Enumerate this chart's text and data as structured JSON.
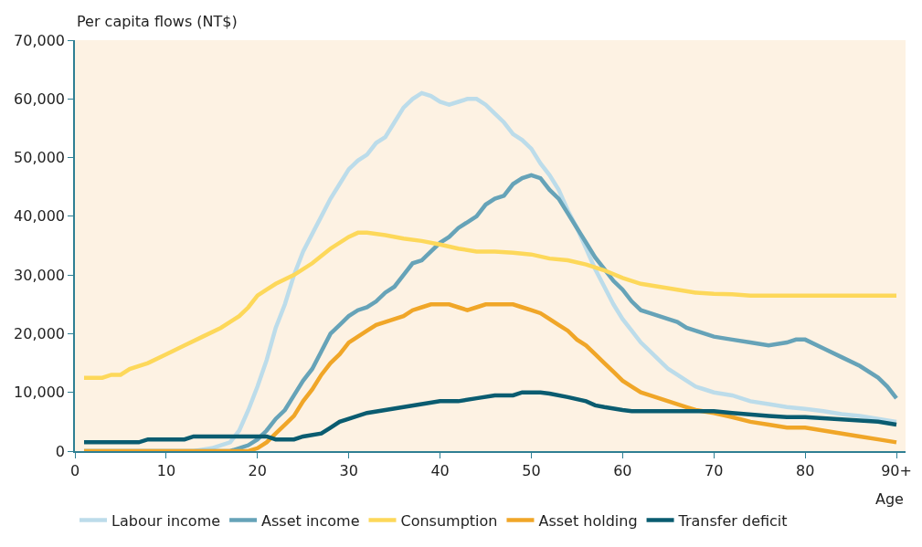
{
  "chart_data": {
    "type": "line",
    "ylabel": "Per capita flows (NT$)",
    "xlabel": "Age",
    "xlim": [
      0,
      91
    ],
    "ylim": [
      0,
      70000
    ],
    "xticks": [
      0,
      10,
      20,
      30,
      40,
      50,
      60,
      70,
      80,
      {
        "value": 90,
        "label": "90+"
      }
    ],
    "yticks": [
      {
        "value": 0,
        "label": "0"
      },
      {
        "value": 10000,
        "label": "10,000"
      },
      {
        "value": 20000,
        "label": "20,000"
      },
      {
        "value": 30000,
        "label": "30,000"
      },
      {
        "value": 40000,
        "label": "40,000"
      },
      {
        "value": 50000,
        "label": "50,000"
      },
      {
        "value": 60000,
        "label": "60,000"
      },
      {
        "value": 70000,
        "label": "70,000"
      }
    ],
    "grid": false,
    "legend": "bottom",
    "marker": "none",
    "line_style": "solid",
    "series": [
      {
        "name": "Labour income",
        "color": "#bcdcea",
        "x": [
          1,
          13,
          15,
          17,
          18,
          19,
          20,
          21,
          22,
          23,
          24,
          25,
          26,
          27,
          28,
          29,
          30,
          31,
          32,
          33,
          34,
          35,
          36,
          37,
          38,
          39,
          40,
          41,
          42,
          43,
          44,
          45,
          46,
          47,
          48,
          49,
          50,
          51,
          52,
          53,
          54,
          55,
          56,
          57,
          58,
          59,
          60,
          61,
          62,
          63,
          64,
          65,
          66,
          67,
          68,
          69,
          70,
          72,
          74,
          76,
          78,
          80,
          82,
          84,
          86,
          88,
          90
        ],
        "values": [
          0,
          0,
          500,
          1500,
          3500,
          7000,
          11000,
          15500,
          21000,
          25000,
          30000,
          34000,
          37000,
          40000,
          43000,
          45500,
          48000,
          49500,
          50500,
          52500,
          53500,
          56000,
          58500,
          60000,
          61000,
          60500,
          59500,
          59000,
          59500,
          60000,
          60000,
          59000,
          57500,
          56000,
          54000,
          53000,
          51500,
          49000,
          47000,
          44500,
          41000,
          38000,
          34500,
          31000,
          28000,
          25000,
          22500,
          20500,
          18500,
          17000,
          15500,
          14000,
          13000,
          12000,
          11000,
          10500,
          10000,
          9500,
          8500,
          8000,
          7500,
          7200,
          6800,
          6300,
          6000,
          5500,
          5000
        ]
      },
      {
        "name": "Asset income",
        "color": "#66a3b8",
        "x": [
          1,
          17,
          18,
          19,
          20,
          21,
          22,
          23,
          24,
          25,
          26,
          27,
          28,
          29,
          30,
          31,
          32,
          33,
          34,
          35,
          36,
          37,
          38,
          39,
          40,
          41,
          42,
          43,
          44,
          45,
          46,
          47,
          48,
          49,
          50,
          51,
          52,
          53,
          54,
          55,
          56,
          57,
          58,
          59,
          60,
          61,
          62,
          63,
          64,
          65,
          66,
          67,
          68,
          69,
          70,
          72,
          74,
          76,
          78,
          79,
          80,
          82,
          84,
          86,
          88,
          89,
          90
        ],
        "values": [
          0,
          0,
          500,
          1000,
          2000,
          3500,
          5500,
          7000,
          9500,
          12000,
          14000,
          17000,
          20000,
          21500,
          23000,
          24000,
          24500,
          25500,
          27000,
          28000,
          30000,
          32000,
          32500,
          34000,
          35500,
          36500,
          38000,
          39000,
          40000,
          42000,
          43000,
          43500,
          45500,
          46500,
          47000,
          46500,
          44500,
          43000,
          40500,
          38000,
          35500,
          33000,
          31000,
          29000,
          27500,
          25500,
          24000,
          23500,
          23000,
          22500,
          22000,
          21000,
          20500,
          20000,
          19500,
          19000,
          18500,
          18000,
          18500,
          19000,
          19000,
          17500,
          16000,
          14500,
          12500,
          11000,
          9000
        ]
      },
      {
        "name": "Consumption",
        "color": "#fdd85a",
        "x": [
          1,
          3,
          4,
          5,
          6,
          8,
          10,
          12,
          14,
          16,
          18,
          19,
          20,
          21,
          22,
          24,
          26,
          28,
          30,
          31,
          32,
          34,
          36,
          38,
          40,
          42,
          44,
          46,
          48,
          50,
          52,
          54,
          56,
          58,
          60,
          62,
          64,
          66,
          68,
          70,
          72,
          74,
          90
        ],
        "values": [
          12500,
          12500,
          13000,
          13000,
          14000,
          15000,
          16500,
          18000,
          19500,
          21000,
          23000,
          24500,
          26500,
          27500,
          28500,
          30000,
          32000,
          34500,
          36500,
          37200,
          37200,
          36800,
          36200,
          35800,
          35200,
          34500,
          34000,
          34000,
          33800,
          33500,
          32800,
          32500,
          31800,
          30800,
          29500,
          28500,
          28000,
          27500,
          27000,
          26800,
          26700,
          26500,
          26500
        ]
      },
      {
        "name": "Asset holding",
        "color": "#f0a628",
        "x": [
          1,
          19,
          20,
          21,
          22,
          23,
          24,
          25,
          26,
          27,
          28,
          29,
          30,
          31,
          32,
          33,
          34,
          35,
          36,
          37,
          38,
          39,
          40,
          41,
          42,
          43,
          44,
          45,
          46,
          47,
          48,
          49,
          50,
          51,
          52,
          53,
          54,
          55,
          56,
          57,
          58,
          59,
          60,
          61,
          62,
          63,
          64,
          65,
          66,
          67,
          68,
          70,
          72,
          74,
          76,
          78,
          80,
          82,
          84,
          86,
          88,
          90
        ],
        "values": [
          0,
          0,
          500,
          1500,
          3000,
          4500,
          6000,
          8500,
          10500,
          13000,
          15000,
          16500,
          18500,
          19500,
          20500,
          21500,
          22000,
          22500,
          23000,
          24000,
          24500,
          25000,
          25000,
          25000,
          24500,
          24000,
          24500,
          25000,
          25000,
          25000,
          25000,
          24500,
          24000,
          23500,
          22500,
          21500,
          20500,
          19000,
          18000,
          16500,
          15000,
          13500,
          12000,
          11000,
          10000,
          9500,
          9000,
          8500,
          8000,
          7500,
          7000,
          6500,
          5800,
          5000,
          4500,
          4000,
          4000,
          3500,
          3000,
          2500,
          2000,
          1500
        ]
      },
      {
        "name": "Transfer deficit",
        "color": "#0a5c70",
        "x": [
          1,
          7,
          8,
          12,
          13,
          21,
          22,
          24,
          25,
          27,
          28,
          29,
          30,
          32,
          34,
          36,
          38,
          40,
          42,
          44,
          46,
          48,
          49,
          51,
          52,
          54,
          56,
          57,
          58,
          60,
          61,
          70,
          72,
          76,
          78,
          80,
          82,
          84,
          86,
          88,
          90
        ],
        "values": [
          1500,
          1500,
          2000,
          2000,
          2500,
          2500,
          2000,
          2000,
          2500,
          3000,
          4000,
          5000,
          5500,
          6500,
          7000,
          7500,
          8000,
          8500,
          8500,
          9000,
          9500,
          9500,
          10000,
          10000,
          9800,
          9200,
          8500,
          7800,
          7500,
          7000,
          6800,
          6800,
          6500,
          6000,
          5800,
          5800,
          5600,
          5400,
          5200,
          5000,
          4500
        ]
      }
    ]
  }
}
